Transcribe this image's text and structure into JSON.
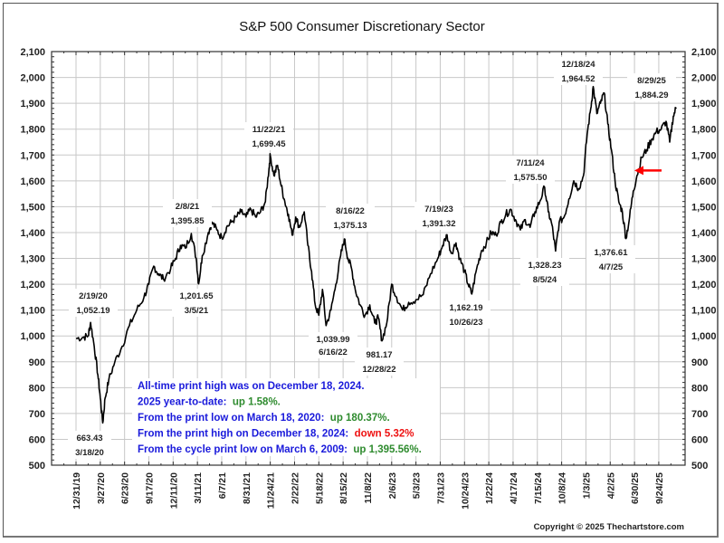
{
  "chart_data": {
    "type": "line",
    "title": "S&P 500 Consumer Discretionary Sector",
    "xlabel": "",
    "ylabel": "",
    "ylim": [
      500,
      2100
    ],
    "y_ticks": [
      "2,100",
      "2,000",
      "1,900",
      "1,800",
      "1,700",
      "1,600",
      "1,500",
      "1,400",
      "1,300",
      "1,200",
      "1,100",
      "1,000",
      "900",
      "800",
      "700",
      "600",
      "500"
    ],
    "y_tick_values": [
      2100,
      2000,
      1900,
      1800,
      1700,
      1600,
      1500,
      1400,
      1300,
      1200,
      1100,
      1000,
      900,
      800,
      700,
      600,
      500
    ],
    "x_ticks": [
      "12/31/19",
      "3/27/20",
      "6/23/20",
      "9/17/20",
      "12/11/20",
      "3/11/21",
      "6/7/21",
      "8/31/21",
      "11/24/21",
      "2/22/22",
      "5/18/22",
      "8/15/22",
      "11/8/22",
      "2/6/23",
      "5/3/23",
      "7/31/23",
      "10/24/23",
      "1/22/24",
      "4/17/24",
      "7/15/24",
      "10/8/24",
      "1/3/25",
      "4/2/25",
      "6/30/25",
      "9/24/25"
    ],
    "grid": true,
    "right_axis_mirrored": true,
    "series": [
      {
        "name": "S&P 500 Consumer Discretionary",
        "color": "#000000",
        "points": [
          {
            "x": 0.0,
            "y": 990
          },
          {
            "x": 0.3,
            "y": 995
          },
          {
            "x": 0.5,
            "y": 1000
          },
          {
            "x": 0.6,
            "y": 1052.19
          },
          {
            "x": 0.75,
            "y": 960
          },
          {
            "x": 0.9,
            "y": 850
          },
          {
            "x": 1.0,
            "y": 760
          },
          {
            "x": 1.1,
            "y": 663.43
          },
          {
            "x": 1.2,
            "y": 760
          },
          {
            "x": 1.35,
            "y": 830
          },
          {
            "x": 1.6,
            "y": 900
          },
          {
            "x": 1.9,
            "y": 960
          },
          {
            "x": 2.2,
            "y": 1040
          },
          {
            "x": 2.5,
            "y": 1100
          },
          {
            "x": 2.8,
            "y": 1150
          },
          {
            "x": 3.0,
            "y": 1200
          },
          {
            "x": 3.2,
            "y": 1270
          },
          {
            "x": 3.4,
            "y": 1240
          },
          {
            "x": 3.6,
            "y": 1220
          },
          {
            "x": 3.9,
            "y": 1260
          },
          {
            "x": 4.1,
            "y": 1300
          },
          {
            "x": 4.3,
            "y": 1350
          },
          {
            "x": 4.5,
            "y": 1340
          },
          {
            "x": 4.75,
            "y": 1395.85
          },
          {
            "x": 4.95,
            "y": 1300
          },
          {
            "x": 5.05,
            "y": 1201.65
          },
          {
            "x": 5.2,
            "y": 1310
          },
          {
            "x": 5.45,
            "y": 1400
          },
          {
            "x": 5.6,
            "y": 1440
          },
          {
            "x": 5.8,
            "y": 1410
          },
          {
            "x": 6.0,
            "y": 1380
          },
          {
            "x": 6.2,
            "y": 1420
          },
          {
            "x": 6.4,
            "y": 1440
          },
          {
            "x": 6.6,
            "y": 1460
          },
          {
            "x": 6.8,
            "y": 1480
          },
          {
            "x": 7.0,
            "y": 1460
          },
          {
            "x": 7.2,
            "y": 1490
          },
          {
            "x": 7.4,
            "y": 1460
          },
          {
            "x": 7.6,
            "y": 1480
          },
          {
            "x": 7.8,
            "y": 1520
          },
          {
            "x": 7.95,
            "y": 1650
          },
          {
            "x": 8.0,
            "y": 1699.45
          },
          {
            "x": 8.15,
            "y": 1620
          },
          {
            "x": 8.3,
            "y": 1660
          },
          {
            "x": 8.45,
            "y": 1580
          },
          {
            "x": 8.6,
            "y": 1520
          },
          {
            "x": 8.75,
            "y": 1470
          },
          {
            "x": 8.9,
            "y": 1390
          },
          {
            "x": 9.05,
            "y": 1460
          },
          {
            "x": 9.2,
            "y": 1420
          },
          {
            "x": 9.4,
            "y": 1480
          },
          {
            "x": 9.55,
            "y": 1350
          },
          {
            "x": 9.7,
            "y": 1250
          },
          {
            "x": 9.85,
            "y": 1120
          },
          {
            "x": 10.0,
            "y": 1080
          },
          {
            "x": 10.15,
            "y": 1180
          },
          {
            "x": 10.3,
            "y": 1039.99
          },
          {
            "x": 10.5,
            "y": 1100
          },
          {
            "x": 10.7,
            "y": 1200
          },
          {
            "x": 10.9,
            "y": 1310
          },
          {
            "x": 11.05,
            "y": 1375.13
          },
          {
            "x": 11.2,
            "y": 1300
          },
          {
            "x": 11.35,
            "y": 1260
          },
          {
            "x": 11.5,
            "y": 1180
          },
          {
            "x": 11.7,
            "y": 1120
          },
          {
            "x": 11.9,
            "y": 1080
          },
          {
            "x": 12.1,
            "y": 1120
          },
          {
            "x": 12.3,
            "y": 1050
          },
          {
            "x": 12.45,
            "y": 1070
          },
          {
            "x": 12.6,
            "y": 981.17
          },
          {
            "x": 12.8,
            "y": 1050
          },
          {
            "x": 13.0,
            "y": 1200
          },
          {
            "x": 13.2,
            "y": 1150
          },
          {
            "x": 13.45,
            "y": 1100
          },
          {
            "x": 13.7,
            "y": 1130
          },
          {
            "x": 14.0,
            "y": 1140
          },
          {
            "x": 14.3,
            "y": 1160
          },
          {
            "x": 14.6,
            "y": 1240
          },
          {
            "x": 14.9,
            "y": 1300
          },
          {
            "x": 15.1,
            "y": 1350
          },
          {
            "x": 15.28,
            "y": 1391.32
          },
          {
            "x": 15.45,
            "y": 1320
          },
          {
            "x": 15.65,
            "y": 1360
          },
          {
            "x": 15.8,
            "y": 1300
          },
          {
            "x": 16.0,
            "y": 1250
          },
          {
            "x": 16.15,
            "y": 1200
          },
          {
            "x": 16.3,
            "y": 1162.19
          },
          {
            "x": 16.5,
            "y": 1260
          },
          {
            "x": 16.7,
            "y": 1330
          },
          {
            "x": 16.9,
            "y": 1360
          },
          {
            "x": 17.1,
            "y": 1400
          },
          {
            "x": 17.3,
            "y": 1390
          },
          {
            "x": 17.5,
            "y": 1440
          },
          {
            "x": 17.7,
            "y": 1470
          },
          {
            "x": 17.9,
            "y": 1490
          },
          {
            "x": 18.1,
            "y": 1450
          },
          {
            "x": 18.3,
            "y": 1410
          },
          {
            "x": 18.5,
            "y": 1450
          },
          {
            "x": 18.7,
            "y": 1420
          },
          {
            "x": 18.9,
            "y": 1480
          },
          {
            "x": 19.1,
            "y": 1520
          },
          {
            "x": 19.3,
            "y": 1575.5
          },
          {
            "x": 19.45,
            "y": 1480
          },
          {
            "x": 19.6,
            "y": 1430
          },
          {
            "x": 19.75,
            "y": 1328.23
          },
          {
            "x": 19.9,
            "y": 1440
          },
          {
            "x": 20.1,
            "y": 1460
          },
          {
            "x": 20.3,
            "y": 1530
          },
          {
            "x": 20.5,
            "y": 1600
          },
          {
            "x": 20.7,
            "y": 1570
          },
          {
            "x": 20.9,
            "y": 1620
          },
          {
            "x": 21.05,
            "y": 1780
          },
          {
            "x": 21.2,
            "y": 1880
          },
          {
            "x": 21.3,
            "y": 1964.52
          },
          {
            "x": 21.45,
            "y": 1860
          },
          {
            "x": 21.6,
            "y": 1900
          },
          {
            "x": 21.75,
            "y": 1940
          },
          {
            "x": 21.9,
            "y": 1820
          },
          {
            "x": 22.05,
            "y": 1720
          },
          {
            "x": 22.2,
            "y": 1600
          },
          {
            "x": 22.35,
            "y": 1520
          },
          {
            "x": 22.5,
            "y": 1480
          },
          {
            "x": 22.65,
            "y": 1376.61
          },
          {
            "x": 22.8,
            "y": 1460
          },
          {
            "x": 22.95,
            "y": 1560
          },
          {
            "x": 23.1,
            "y": 1620
          },
          {
            "x": 23.3,
            "y": 1690
          },
          {
            "x": 23.5,
            "y": 1720
          },
          {
            "x": 23.7,
            "y": 1760
          },
          {
            "x": 23.9,
            "y": 1790
          },
          {
            "x": 24.1,
            "y": 1800
          },
          {
            "x": 24.3,
            "y": 1830
          },
          {
            "x": 24.45,
            "y": 1750
          },
          {
            "x": 24.6,
            "y": 1850
          },
          {
            "x": 24.72,
            "y": 1884.29
          }
        ]
      }
    ],
    "annotations": [
      {
        "date": "2/19/20",
        "value": "1,052.19"
      },
      {
        "date": "3/18/20",
        "value": "663.43"
      },
      {
        "date": "2/8/21",
        "value": "1,395.85"
      },
      {
        "date": "3/5/21",
        "value": "1,201.65"
      },
      {
        "date": "11/22/21",
        "value": "1,699.45"
      },
      {
        "date": "6/16/22",
        "value": "1,039.99"
      },
      {
        "date": "8/16/22",
        "value": "1,375.13"
      },
      {
        "date": "12/28/22",
        "value": "981.17"
      },
      {
        "date": "7/19/23",
        "value": "1,391.32"
      },
      {
        "date": "10/26/23",
        "value": "1,162.19"
      },
      {
        "date": "7/11/24",
        "value": "1,575.50"
      },
      {
        "date": "8/5/24",
        "value": "1,328.23"
      },
      {
        "date": "12/18/24",
        "value": "1,964.52"
      },
      {
        "date": "4/7/25",
        "value": "1,376.61"
      },
      {
        "date": "8/29/25",
        "value": "1,884.29"
      }
    ],
    "arrow": {
      "direction": "left",
      "color": "#ff0000",
      "value": 1640
    },
    "notes": [
      {
        "parts": [
          {
            "text": "All-time print high was on December 18, 2024.",
            "color": "#1a1adb"
          }
        ]
      },
      {
        "parts": [
          {
            "text": "2025 year-to-date:  ",
            "color": "#1a1adb"
          },
          {
            "text": "up 1.58%.",
            "color": "#2e8b2e"
          }
        ]
      },
      {
        "parts": [
          {
            "text": "From the print low on March 18, 2020:  ",
            "color": "#1a1adb"
          },
          {
            "text": "up 180.37%.",
            "color": "#2e8b2e"
          }
        ]
      },
      {
        "parts": [
          {
            "text": "From the print high on December 18, 2024:  ",
            "color": "#1a1adb"
          },
          {
            "text": "down 5.32%",
            "color": "#ee1111"
          }
        ]
      },
      {
        "parts": [
          {
            "text": "From the cycle print low on March 6, 2009:  ",
            "color": "#1a1adb"
          },
          {
            "text": "up 1,395.56%.",
            "color": "#2e8b2e"
          }
        ]
      }
    ],
    "copyright": "Copyright © 2025 Thechartstore.com"
  }
}
